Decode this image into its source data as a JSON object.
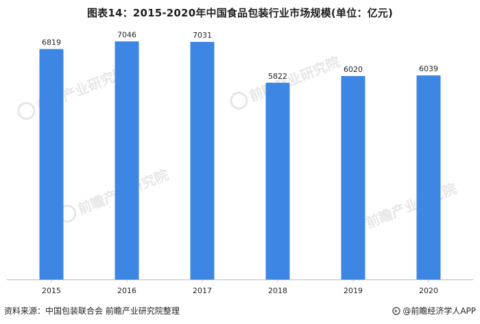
{
  "title": "图表14：2015-2020年中国食品包装行业市场规模(单位：亿元)",
  "source": "资料来源：中国包装联合会 前瞻产业研究院整理",
  "brand": "@前瞻经济学人APP",
  "watermark": "前瞻产业研究院",
  "colors": {
    "bar": "#3d86e3",
    "axis": "#bfbfbf",
    "text": "#222222"
  },
  "chart_data": {
    "type": "bar",
    "categories": [
      "2015",
      "2016",
      "2017",
      "2018",
      "2019",
      "2020"
    ],
    "values": [
      6819,
      7046,
      7031,
      5822,
      6020,
      6039
    ],
    "title": "图表14：2015-2020年中国食品包装行业市场规模(单位：亿元)",
    "xlabel": "",
    "ylabel": "",
    "ylim": [
      0,
      7500
    ],
    "grid": false,
    "legend": "none"
  }
}
